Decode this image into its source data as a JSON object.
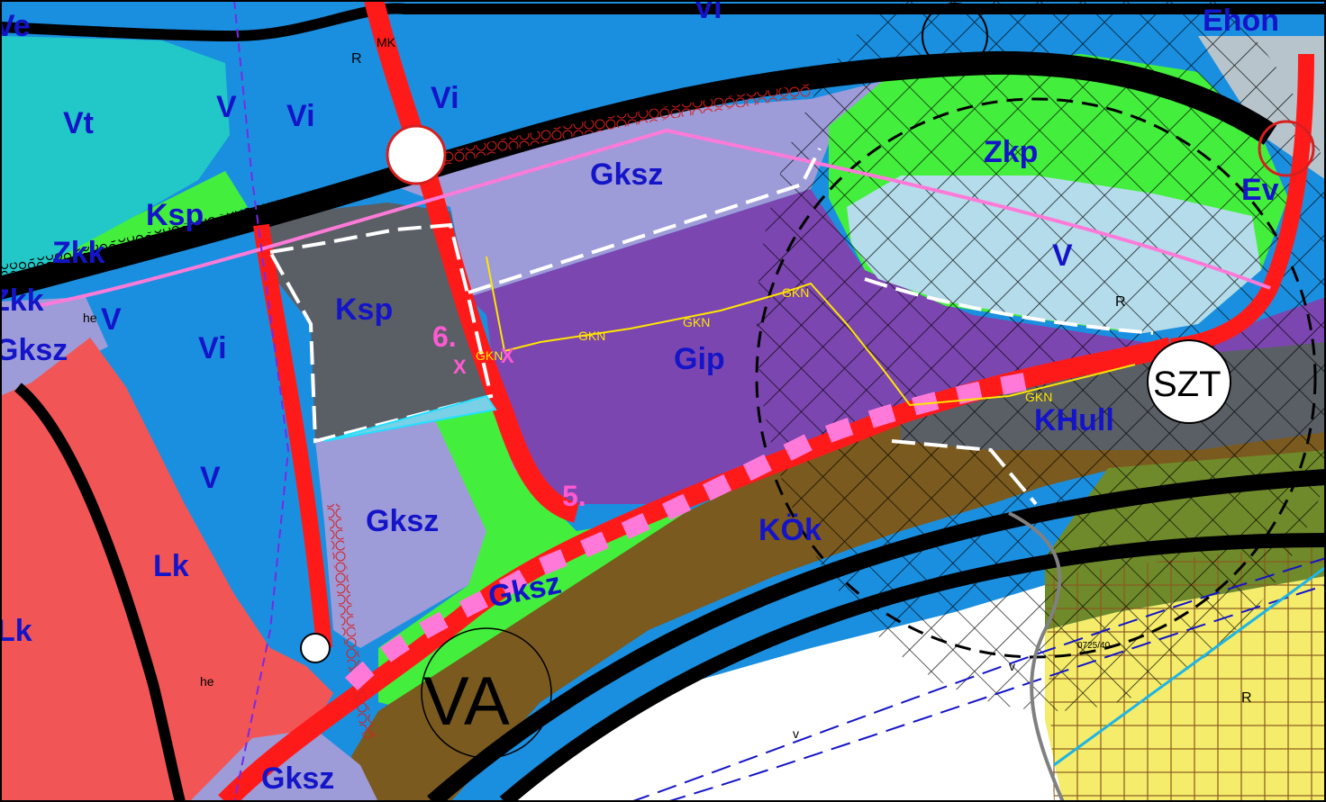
{
  "colors": {
    "residential_blue": "#1a8fe0",
    "residential_teal": "#22c8c8",
    "gksz": "#9d9bd8",
    "gip": "#7c46b0",
    "ksp": "#5a5f66",
    "green": "#43ef3c",
    "lk": "#f25555",
    "kok": "#7a5a1e",
    "v_water": "#b4dcea",
    "olive": "#6f8a2a",
    "yellow": "#f4ec6a",
    "road_red": "#ff1a1a",
    "road_black": "#000000",
    "label_blue": "#1414c8",
    "pink": "#ff7ad8"
  },
  "zones": {
    "ve": "Ve",
    "vi_top": "Vi",
    "ehon": "Ehon",
    "vt": "Vt",
    "v_left": "V",
    "vi_left": "Vi",
    "vi_center": "Vi",
    "gksz_top": "Gksz",
    "zkp": "Zkp",
    "ev": "Ev",
    "ksp_left": "Ksp",
    "zkk_left": "Zkk",
    "v_lake": "V",
    "zkk_edge": "Zkk",
    "v_mid": "V",
    "ksp_center": "Ksp",
    "gksz_edge": "Gksz",
    "vi_mid": "Vi",
    "gip": "Gip",
    "szt": "SZT",
    "khull": "KHull",
    "v_lower": "V",
    "gksz_mid": "Gksz",
    "kok": "KÖk",
    "lk_center": "Lk",
    "gksz_green": "Gksz",
    "lk_left": "Lk",
    "va": "VA",
    "gksz_bottom": "Gksz"
  },
  "markers": {
    "m6": "6.",
    "m5": "5.",
    "x1": "X",
    "x2": "X"
  },
  "line_labels": {
    "gkn": "GKN",
    "r": "R",
    "he": "he",
    "mk": "MK",
    "v": "v"
  },
  "parcel_number": "0725/40"
}
